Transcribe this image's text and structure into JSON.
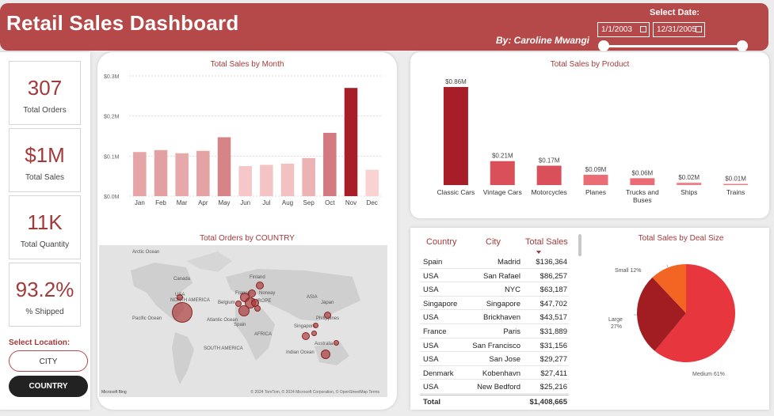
{
  "header": {
    "title": "Retail Sales Dashboard",
    "author": "By: Caroline Mwangi",
    "date_label": "Select Date:",
    "date_start": "1/1/2003",
    "date_end": "12/31/2005"
  },
  "kpis": [
    {
      "value": "307",
      "label": "Total Orders"
    },
    {
      "value": "$1M",
      "label": "Total Sales"
    },
    {
      "value": "11K",
      "label": "Total Quantity"
    },
    {
      "value": "93.2%",
      "label": "% Shipped"
    }
  ],
  "location": {
    "label": "Select Location:",
    "options": [
      "CITY",
      "COUNTRY"
    ],
    "selected": "COUNTRY"
  },
  "colors": {
    "header": "#b54848",
    "accent": "#a33a3a",
    "bar_dark": "#a81e28",
    "pie_medium": "#e8363f",
    "pie_large": "#a11d22",
    "pie_small": "#f26522"
  },
  "chart_data": [
    {
      "type": "bar",
      "title": "Total Sales by Month",
      "categories": [
        "Jan",
        "Feb",
        "Mar",
        "Apr",
        "May",
        "Jun",
        "Jul",
        "Aug",
        "Sep",
        "Oct",
        "Nov",
        "Dec"
      ],
      "values": [
        0.11,
        0.115,
        0.107,
        0.113,
        0.147,
        0.075,
        0.078,
        0.081,
        0.095,
        0.158,
        0.27,
        0.066
      ],
      "yticks": [
        "$0.0M",
        "$0.1M",
        "$0.2M",
        "$0.3M"
      ],
      "ylim": [
        0,
        0.3
      ],
      "grid": true
    },
    {
      "type": "bar",
      "title": "Total Sales by Product",
      "categories": [
        "Classic Cars",
        "Vintage Cars",
        "Motorcycles",
        "Planes",
        "Trucks and Buses",
        "Ships",
        "Trains"
      ],
      "values": [
        0.86,
        0.21,
        0.17,
        0.09,
        0.06,
        0.02,
        0.01
      ],
      "data_labels": [
        "$0.86M",
        "$0.21M",
        "$0.17M",
        "$0.09M",
        "$0.06M",
        "$0.02M",
        "$0.01M"
      ],
      "ylim": [
        0,
        0.86
      ]
    },
    {
      "type": "pie",
      "title": "Total Sales by Deal Size",
      "slices": [
        {
          "label": "Medium",
          "value": 61,
          "text": "Medium 61%"
        },
        {
          "label": "Large",
          "value": 27,
          "text": "Large 27%"
        },
        {
          "label": "Small",
          "value": 12,
          "text": "Small 12%"
        }
      ]
    }
  ],
  "map": {
    "title": "Total Orders by COUNTRY",
    "labels": [
      "Arctic Ocean",
      "Canada",
      "USA",
      "NORTH AMERICA",
      "Pacific Ocean",
      "Atlantic Ocean",
      "Finland",
      "Norway",
      "Belgium",
      "France",
      "EUROPE",
      "Spain",
      "AFRICA",
      "ASIA",
      "Japan",
      "Philippines",
      "Singapore",
      "Indian Ocean",
      "Australia",
      "SOUTH AMERICA"
    ],
    "footer": "© 2024 TomTom, © 2024 Microsoft Corporation, © OpenStreetMap  Terms",
    "logo": "Microsoft Bing"
  },
  "table": {
    "headers": [
      "Country",
      "City",
      "Total Sales"
    ],
    "rows": [
      [
        "Spain",
        "Madrid",
        "$136,364"
      ],
      [
        "USA",
        "San Rafael",
        "$86,257"
      ],
      [
        "USA",
        "NYC",
        "$63,187"
      ],
      [
        "Singapore",
        "Singapore",
        "$47,702"
      ],
      [
        "USA",
        "Brickhaven",
        "$43,517"
      ],
      [
        "France",
        "Paris",
        "$31,889"
      ],
      [
        "USA",
        "San Francisco",
        "$31,156"
      ],
      [
        "USA",
        "San Jose",
        "$29,277"
      ],
      [
        "Denmark",
        "Kobenhavn",
        "$27,411"
      ],
      [
        "USA",
        "New Bedford",
        "$25,216"
      ]
    ],
    "total_label": "Total",
    "total_value": "$1,408,665"
  }
}
